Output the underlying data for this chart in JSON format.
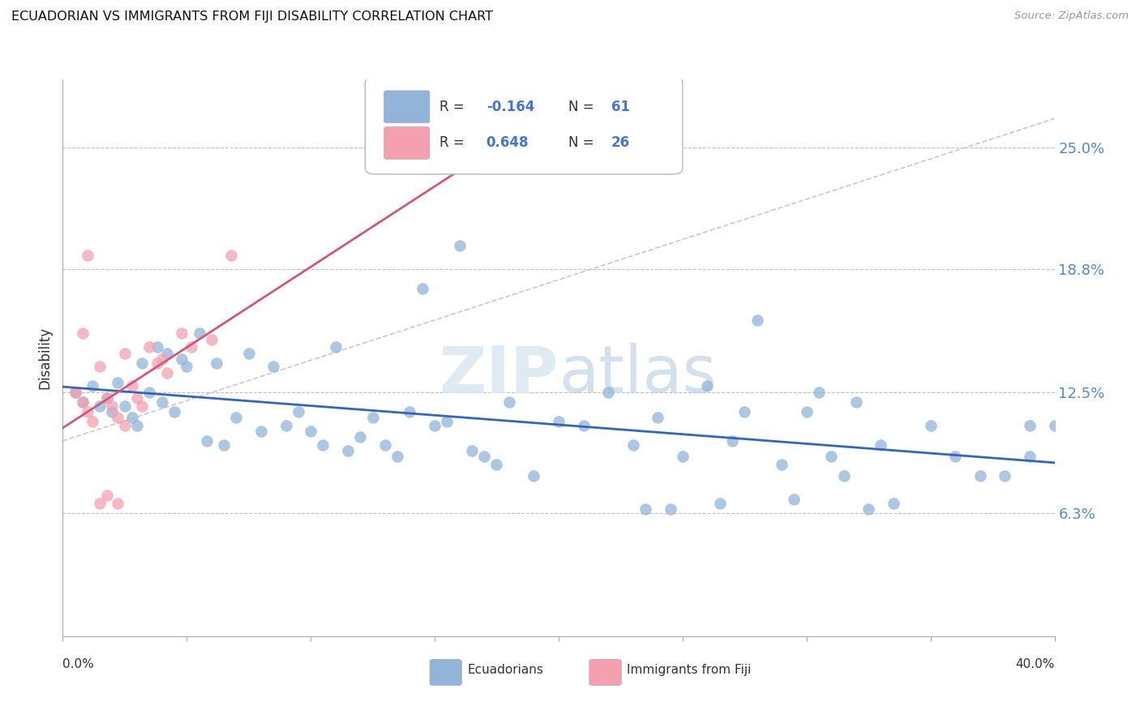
{
  "title": "ECUADORIAN VS IMMIGRANTS FROM FIJI DISABILITY CORRELATION CHART",
  "source": "Source: ZipAtlas.com",
  "ylabel": "Disability",
  "ytick_labels": [
    "25.0%",
    "18.8%",
    "12.5%",
    "6.3%"
  ],
  "ytick_values": [
    0.25,
    0.188,
    0.125,
    0.063
  ],
  "xlim": [
    0.0,
    0.4
  ],
  "ylim": [
    0.0,
    0.285
  ],
  "legend_label_blue": "Ecuadorians",
  "legend_label_pink": "Immigrants from Fiji",
  "blue_color": "#92b4d8",
  "pink_color": "#f4a0b0",
  "trendline_blue": "#3366bb",
  "trendline_pink": "#d05878",
  "trendline_dash_color": "#c8c8d8",
  "blue_scatter_x": [
    0.005,
    0.008,
    0.012,
    0.015,
    0.018,
    0.02,
    0.022,
    0.025,
    0.028,
    0.03,
    0.032,
    0.035,
    0.038,
    0.04,
    0.042,
    0.045,
    0.048,
    0.05,
    0.055,
    0.058,
    0.062,
    0.065,
    0.07,
    0.075,
    0.08,
    0.085,
    0.09,
    0.095,
    0.1,
    0.105,
    0.11,
    0.115,
    0.12,
    0.125,
    0.13,
    0.135,
    0.14,
    0.15,
    0.155,
    0.16,
    0.165,
    0.17,
    0.175,
    0.18,
    0.19,
    0.2,
    0.21,
    0.22,
    0.23,
    0.24,
    0.25,
    0.26,
    0.27,
    0.28,
    0.29,
    0.3,
    0.31,
    0.32,
    0.33,
    0.38,
    0.39
  ],
  "blue_scatter_y": [
    0.125,
    0.12,
    0.128,
    0.118,
    0.122,
    0.115,
    0.13,
    0.118,
    0.112,
    0.108,
    0.14,
    0.125,
    0.148,
    0.12,
    0.145,
    0.115,
    0.142,
    0.138,
    0.155,
    0.1,
    0.14,
    0.098,
    0.112,
    0.145,
    0.105,
    0.138,
    0.108,
    0.115,
    0.105,
    0.098,
    0.148,
    0.095,
    0.102,
    0.112,
    0.098,
    0.092,
    0.115,
    0.108,
    0.11,
    0.2,
    0.095,
    0.092,
    0.088,
    0.12,
    0.082,
    0.11,
    0.108,
    0.125,
    0.098,
    0.112,
    0.092,
    0.128,
    0.1,
    0.162,
    0.088,
    0.115,
    0.092,
    0.12,
    0.098,
    0.082,
    0.108
  ],
  "blue_scatter_x2": [
    0.145,
    0.235,
    0.245,
    0.265,
    0.275,
    0.295,
    0.305,
    0.315,
    0.325,
    0.335,
    0.35,
    0.36,
    0.37,
    0.39,
    0.4
  ],
  "blue_scatter_y2": [
    0.178,
    0.065,
    0.065,
    0.068,
    0.115,
    0.07,
    0.125,
    0.082,
    0.065,
    0.068,
    0.108,
    0.092,
    0.082,
    0.092,
    0.108
  ],
  "pink_scatter_x": [
    0.005,
    0.008,
    0.01,
    0.012,
    0.015,
    0.018,
    0.02,
    0.022,
    0.025,
    0.028,
    0.03,
    0.032,
    0.035,
    0.038,
    0.04,
    0.042,
    0.048,
    0.052,
    0.06,
    0.068,
    0.015,
    0.018,
    0.022,
    0.025,
    0.01,
    0.008
  ],
  "pink_scatter_y": [
    0.125,
    0.12,
    0.115,
    0.11,
    0.138,
    0.122,
    0.118,
    0.112,
    0.108,
    0.128,
    0.122,
    0.118,
    0.148,
    0.14,
    0.142,
    0.135,
    0.155,
    0.148,
    0.152,
    0.195,
    0.068,
    0.072,
    0.068,
    0.145,
    0.195,
    0.155
  ]
}
